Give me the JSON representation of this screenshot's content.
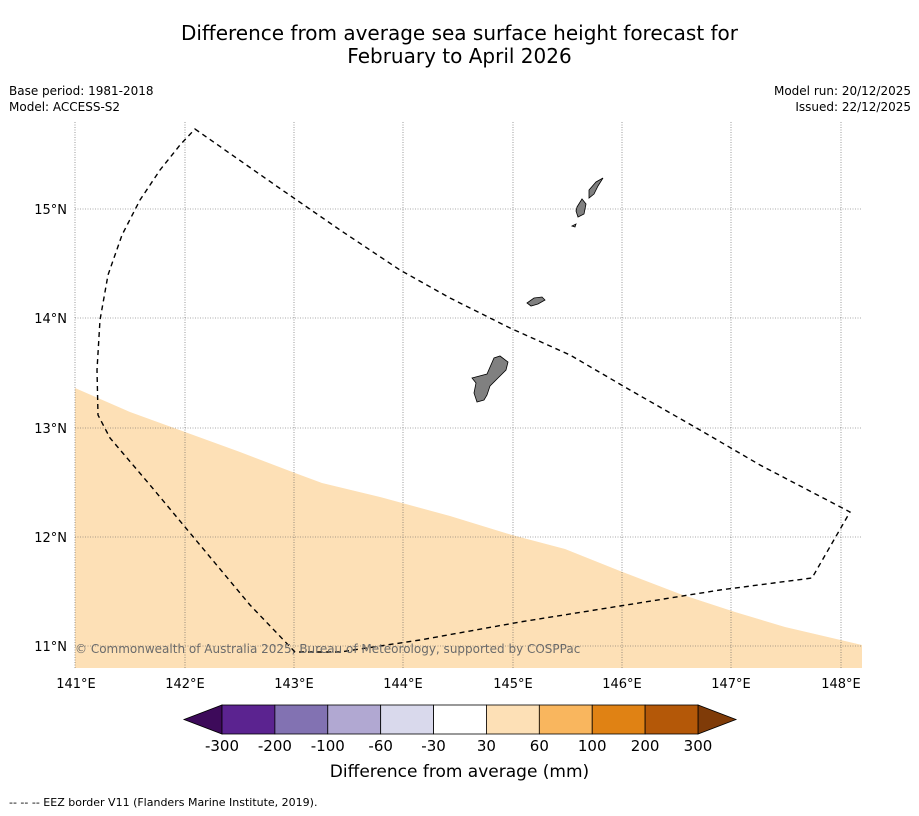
{
  "title_line1": "Difference from average sea surface height forecast for",
  "title_line2": "February to April 2026",
  "meta": {
    "base_period": "Base period: 1981-2018",
    "model": "Model: ACCESS-S2",
    "model_run": "Model run: 20/12/2025",
    "issued": "Issued: 22/12/2025"
  },
  "map": {
    "lon_labels": [
      "141°E",
      "142°E",
      "143°E",
      "144°E",
      "145°E",
      "146°E",
      "147°E",
      "148°E"
    ],
    "lat_labels": [
      "15°N",
      "14°N",
      "13°N",
      "12°N",
      "11°N"
    ],
    "copyright": "© Commonwealth of Australia 2025, Bureau of Meteorology, supported by COSPPac",
    "shaded_class": "30 to 60 mm",
    "land_color": "#808080",
    "shade_color": "#fde0b6"
  },
  "colorbar": {
    "ticks": [
      "-300",
      "-200",
      "-100",
      "-60",
      "-30",
      "30",
      "60",
      "100",
      "200",
      "300"
    ],
    "colors": [
      "#3d0a5a",
      "#5b2390",
      "#8272b2",
      "#b1a8d2",
      "#d9d9ec",
      "#ffffff",
      "#fde0b6",
      "#f9b65e",
      "#e08214",
      "#b45808",
      "#7f3b08"
    ],
    "title": "Difference from average (mm)"
  },
  "footer": "--  --  -- EEZ border V11 (Flanders Marine Institute, 2019)."
}
